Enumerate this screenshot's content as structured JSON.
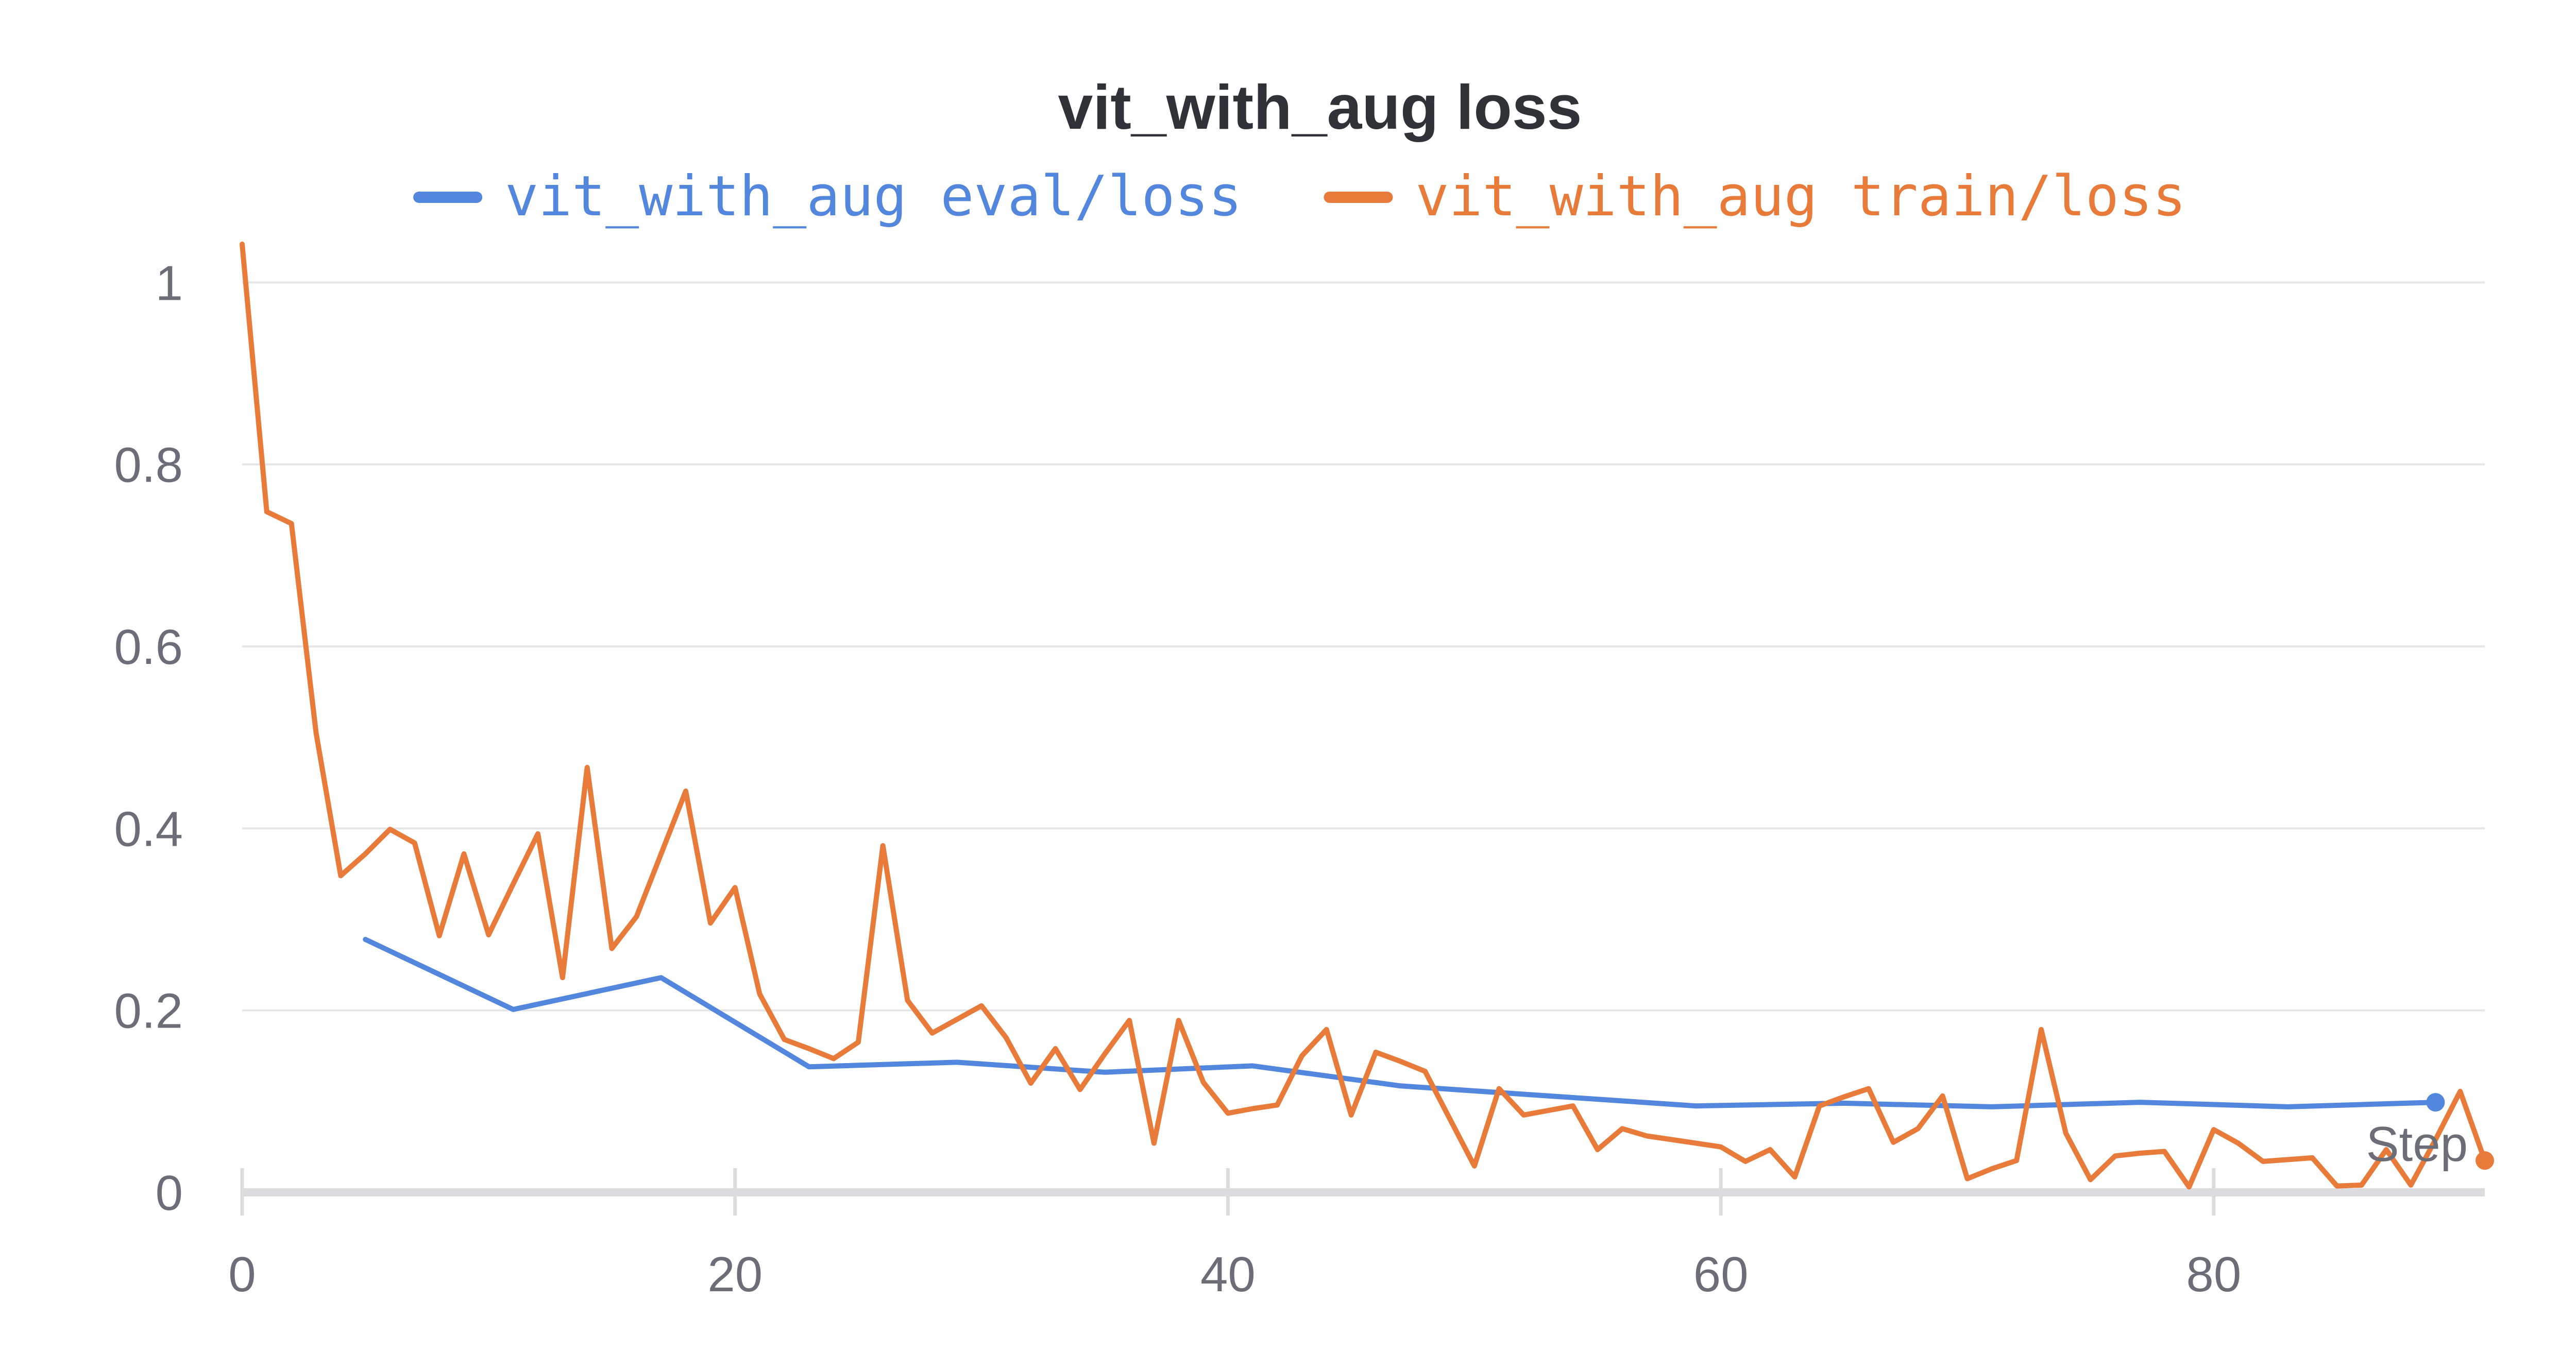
{
  "chart_data": {
    "type": "line",
    "title": "vit_with_aug loss",
    "xlabel": "Step",
    "ylabel": "",
    "xlim": [
      0,
      91
    ],
    "ylim": [
      0,
      1.05
    ],
    "x_ticks": [
      0,
      20,
      40,
      60,
      80
    ],
    "y_ticks": [
      0,
      0.2,
      0.4,
      0.6,
      0.8,
      1
    ],
    "y_tick_labels": [
      "0",
      "0.2",
      "0.4",
      "0.6",
      "0.8",
      "1"
    ],
    "x_tick_labels": [
      "0",
      "20",
      "40",
      "60",
      "80"
    ],
    "grid": "horizontal",
    "legend": "top",
    "series": [
      {
        "name": "vit_with_aug eval/loss",
        "color": "#5387dd",
        "x": [
          5,
          11,
          17,
          23,
          29,
          35,
          41,
          47,
          53,
          59,
          65,
          71,
          77,
          83,
          89
        ],
        "y": [
          0.278,
          0.201,
          0.236,
          0.138,
          0.143,
          0.132,
          0.139,
          0.117,
          0.106,
          0.095,
          0.098,
          0.094,
          0.099,
          0.094,
          0.099
        ]
      },
      {
        "name": "vit_with_aug train/loss",
        "color": "#e87b3a",
        "x": [
          0,
          1,
          2,
          3,
          4,
          5,
          6,
          7,
          8,
          9,
          10,
          11,
          12,
          13,
          14,
          15,
          16,
          17,
          18,
          19,
          20,
          21,
          22,
          23,
          24,
          25,
          26,
          27,
          28,
          29,
          30,
          31,
          32,
          33,
          34,
          35,
          36,
          37,
          38,
          39,
          40,
          41,
          42,
          43,
          44,
          45,
          46,
          47,
          48,
          49,
          50,
          51,
          52,
          53,
          54,
          55,
          56,
          57,
          58,
          59,
          60,
          61,
          62,
          63,
          64,
          65,
          66,
          67,
          68,
          69,
          70,
          71,
          72,
          73,
          74,
          75,
          76,
          77,
          78,
          79,
          80,
          81,
          82,
          83,
          84,
          85,
          86,
          87,
          88,
          89,
          90,
          91
        ],
        "y": [
          1.042,
          0.748,
          0.735,
          0.505,
          0.348,
          0.372,
          0.399,
          0.384,
          0.282,
          0.372,
          0.283,
          0.339,
          0.394,
          0.236,
          0.467,
          0.268,
          0.303,
          0.372,
          0.441,
          0.296,
          0.335,
          0.218,
          0.168,
          0.158,
          0.147,
          0.165,
          0.381,
          0.211,
          0.175,
          0.19,
          0.205,
          0.17,
          0.12,
          0.158,
          0.113,
          0.152,
          0.189,
          0.054,
          0.189,
          0.121,
          0.087,
          0.092,
          0.096,
          0.15,
          0.179,
          0.085,
          0.154,
          0.144,
          0.133,
          0.081,
          0.029,
          0.114,
          0.085,
          0.09,
          0.095,
          0.047,
          0.07,
          0.062,
          0.058,
          0.054,
          0.05,
          0.034,
          0.047,
          0.017,
          0.095,
          0.105,
          0.114,
          0.055,
          0.07,
          0.106,
          0.015,
          0.026,
          0.035,
          0.179,
          0.065,
          0.014,
          0.04,
          0.043,
          0.045,
          0.006,
          0.069,
          0.054,
          0.034,
          0.036,
          0.038,
          0.007,
          0.008,
          0.047,
          0.008,
          0.058,
          0.111,
          0.035
        ]
      }
    ]
  }
}
